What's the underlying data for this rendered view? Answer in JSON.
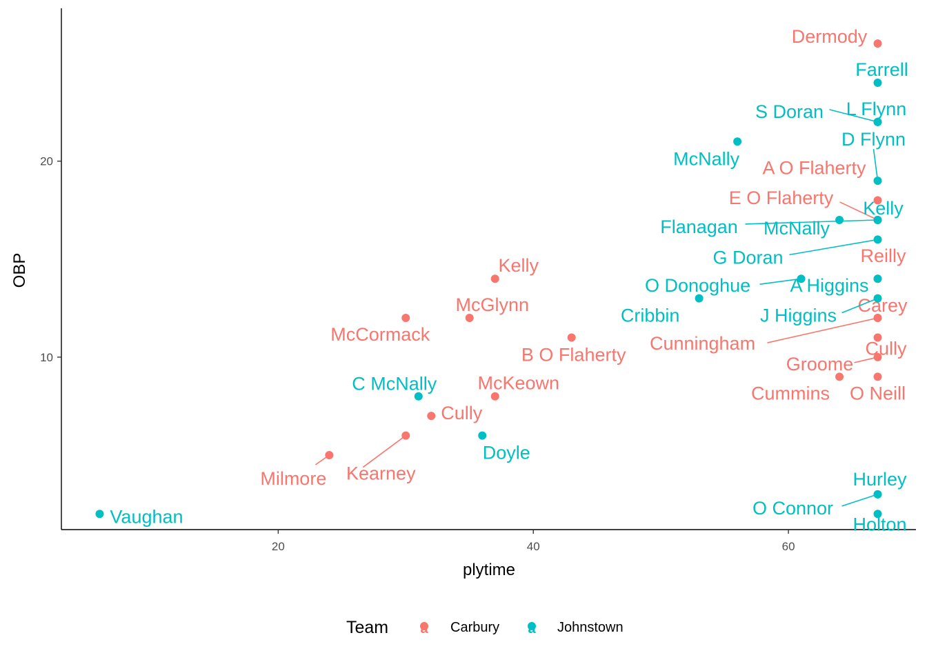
{
  "chart_data": {
    "type": "scatter",
    "title": "",
    "xlabel": "plytime",
    "ylabel": "OBP",
    "xlim": [
      3,
      70
    ],
    "ylim": [
      1.2,
      27.8
    ],
    "x_ticks": [
      20,
      40,
      60
    ],
    "y_ticks": [
      10,
      20
    ],
    "grid": false,
    "legend": {
      "title": "Team",
      "position": "bottom",
      "entries": [
        {
          "name": "Carbury",
          "color": "#F8766D",
          "glyph": "a"
        },
        {
          "name": "Johnstown",
          "color": "#00BFC4",
          "glyph": "a"
        }
      ]
    },
    "series": [
      {
        "name": "Carbury",
        "color": "#F8766D",
        "points": [
          {
            "label": "Dermody",
            "x": 67,
            "y": 26
          },
          {
            "label": "A O Flaherty",
            "x": 67,
            "y": 18
          },
          {
            "label": "E O Flaherty",
            "x": 67,
            "y": 17
          },
          {
            "label": "Reilly",
            "x": 67,
            "y": 14
          },
          {
            "label": "Carey",
            "x": 67,
            "y": 12
          },
          {
            "label": "Cunningham",
            "x": 67,
            "y": 12
          },
          {
            "label": "Cully",
            "x": 67,
            "y": 11
          },
          {
            "label": "Groome",
            "x": 67,
            "y": 10
          },
          {
            "label": "O Neill",
            "x": 67,
            "y": 9
          },
          {
            "label": "Cummins",
            "x": 64,
            "y": 9
          },
          {
            "label": "B O Flaherty",
            "x": 43,
            "y": 11
          },
          {
            "label": "Kelly",
            "x": 37,
            "y": 14
          },
          {
            "label": "McGlynn",
            "x": 35,
            "y": 12
          },
          {
            "label": "McCormack",
            "x": 30,
            "y": 12
          },
          {
            "label": "McKeown",
            "x": 37,
            "y": 8
          },
          {
            "label": "Cully",
            "x": 32,
            "y": 7
          },
          {
            "label": "Kearney",
            "x": 30,
            "y": 6
          },
          {
            "label": "Milmore",
            "x": 24,
            "y": 5
          }
        ]
      },
      {
        "name": "Johnstown",
        "color": "#00BFC4",
        "points": [
          {
            "label": "Farrell",
            "x": 67,
            "y": 24
          },
          {
            "label": "L Flynn",
            "x": 67,
            "y": 22
          },
          {
            "label": "S Doran",
            "x": 67,
            "y": 22
          },
          {
            "label": "McNally",
            "x": 56,
            "y": 21
          },
          {
            "label": "D Flynn",
            "x": 67,
            "y": 19
          },
          {
            "label": "Kelly",
            "x": 67,
            "y": 17
          },
          {
            "label": "Flanagan",
            "x": 67,
            "y": 17
          },
          {
            "label": "McNally",
            "x": 64,
            "y": 17
          },
          {
            "label": "G Doran",
            "x": 67,
            "y": 16
          },
          {
            "label": "A Higgins",
            "x": 67,
            "y": 14
          },
          {
            "label": "O Donoghue",
            "x": 61,
            "y": 14
          },
          {
            "label": "J Higgins",
            "x": 67,
            "y": 13
          },
          {
            "label": "Cribbin",
            "x": 53,
            "y": 13
          },
          {
            "label": "C McNally",
            "x": 31,
            "y": 8
          },
          {
            "label": "Doyle",
            "x": 36,
            "y": 6
          },
          {
            "label": "Hurley",
            "x": 67,
            "y": 3
          },
          {
            "label": "O Connor",
            "x": 67,
            "y": 3
          },
          {
            "label": "Holton",
            "x": 67,
            "y": 2
          },
          {
            "label": "Vaughan",
            "x": 6,
            "y": 2
          }
        ]
      }
    ]
  }
}
